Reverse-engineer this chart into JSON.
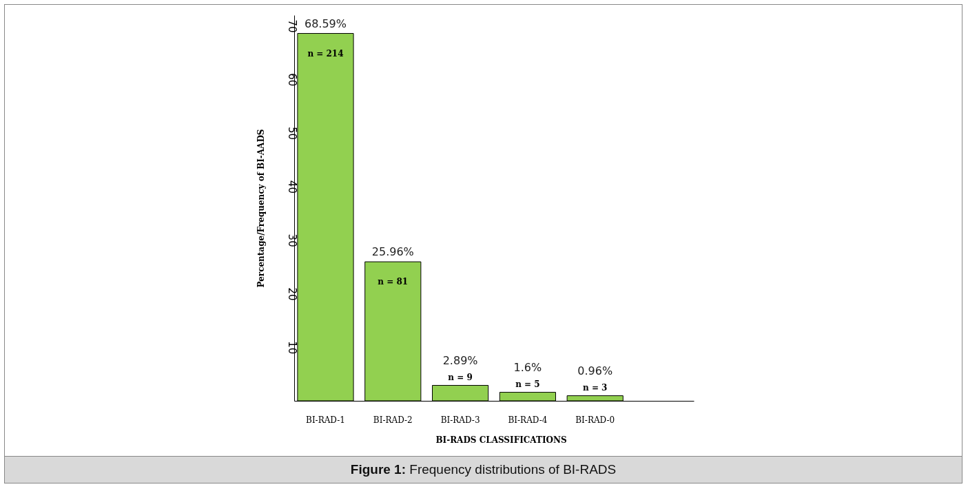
{
  "chart_data": {
    "type": "bar",
    "xlabel": "BI-RADS CLASSIFICATIONS",
    "ylabel": "Percentage/Frequency of BI-AADS",
    "categories": [
      "BI-RAD-1",
      "BI-RAD-2",
      "BI-RAD-3",
      "BI-RAD-4",
      "BI-RAD-0"
    ],
    "values": [
      68.59,
      25.96,
      2.89,
      1.6,
      0.96
    ],
    "value_labels": [
      "68.59%",
      "25.96%",
      "2.89%",
      "1.6%",
      "0.96%"
    ],
    "color": "#92d050",
    "ylim": [
      0,
      72
    ],
    "yticks": [
      10,
      20,
      30,
      40,
      50,
      60,
      70
    ],
    "grid": false,
    "annotations": [
      {
        "text": "n = 214",
        "x": "BI-RAD-1",
        "y": 68.59
      },
      {
        "text": "n = 81",
        "x": "BI-RAD-2",
        "y": 25.96
      },
      {
        "text": "n = 9",
        "x": "BI-RAD-3",
        "y": 2.89
      },
      {
        "text": "n = 5",
        "x": "BI-RAD-4",
        "y": 1.6
      },
      {
        "text": "n = 3",
        "x": "BI-RAD-0",
        "y": 0.96
      },
      "Figure 1: Frequency distributions of BI-RADS"
    ]
  }
}
